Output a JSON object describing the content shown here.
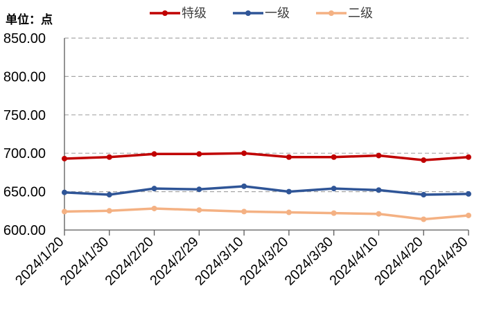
{
  "chart_data": {
    "type": "line",
    "unit_label": "单位：点",
    "x": [
      "2024/1/20",
      "2024/1/30",
      "2024/2/20",
      "2024/2/29",
      "2024/3/10",
      "2024/3/20",
      "2024/3/30",
      "2024/4/10",
      "2024/4/20",
      "2024/4/30"
    ],
    "ylim": [
      600,
      850
    ],
    "yticks": [
      "600.00",
      "650.00",
      "700.00",
      "750.00",
      "800.00",
      "850.00"
    ],
    "grid": "horizontal-dashed",
    "legend_position": "top",
    "series": [
      {
        "name": "特级",
        "color": "#C00000",
        "values": [
          693,
          695,
          699,
          699,
          700,
          695,
          695,
          697,
          691,
          695
        ]
      },
      {
        "name": "一级",
        "color": "#2F5597",
        "values": [
          649,
          646,
          654,
          653,
          657,
          650,
          654,
          652,
          646,
          647
        ]
      },
      {
        "name": "二级",
        "color": "#F4B183",
        "values": [
          624,
          625,
          628,
          626,
          624,
          623,
          622,
          621,
          614,
          619
        ]
      }
    ]
  }
}
